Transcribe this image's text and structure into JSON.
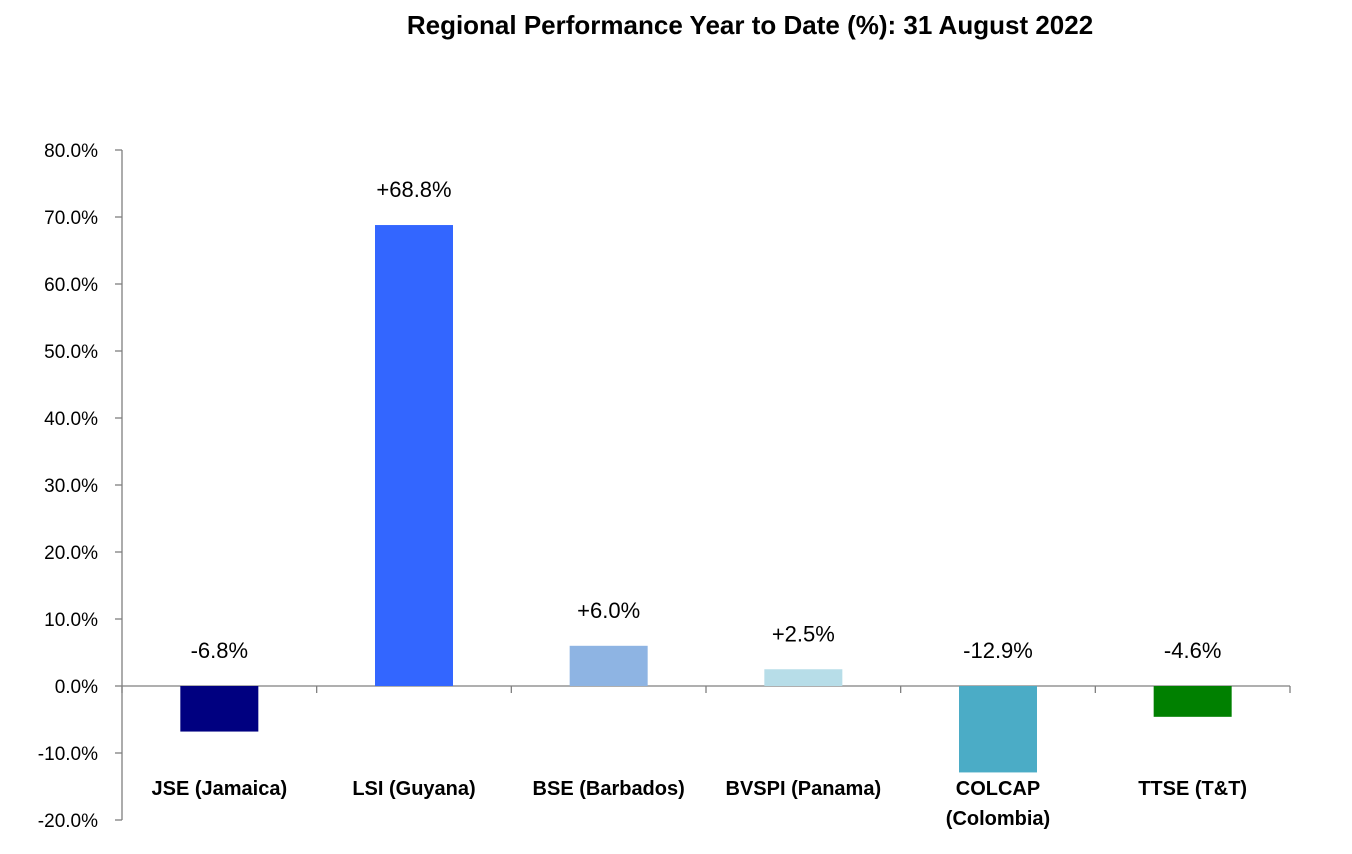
{
  "chart_data": {
    "type": "bar",
    "title": "Regional Performance Year to Date (%): 31 August 2022",
    "xlabel": "",
    "ylabel": "",
    "ylim": [
      -20,
      80
    ],
    "yticks": [
      80,
      70,
      60,
      50,
      40,
      30,
      20,
      10,
      0,
      -10,
      -20
    ],
    "ytick_labels": [
      "80.0%",
      "70.0%",
      "60.0%",
      "50.0%",
      "40.0%",
      "30.0%",
      "20.0%",
      "10.0%",
      "0.0%",
      "-10.0%",
      "-20.0%"
    ],
    "grid": false,
    "legend": "none",
    "categories": [
      [
        "JSE (Jamaica)"
      ],
      [
        "LSI (Guyana)"
      ],
      [
        "BSE (Barbados)"
      ],
      [
        "BVSPI (Panama)"
      ],
      [
        "COLCAP",
        "(Colombia)"
      ],
      [
        "TTSE (T&T)"
      ]
    ],
    "values": [
      -6.8,
      68.8,
      6.0,
      2.5,
      -12.9,
      -4.6
    ],
    "data_labels": [
      "-6.8%",
      "+68.8%",
      "+6.0%",
      "+2.5%",
      "-12.9%",
      "-4.6%"
    ],
    "colors": [
      "#000080",
      "#3366FF",
      "#8EB4E3",
      "#B7DDE8",
      "#4BACC6",
      "#008000"
    ]
  }
}
